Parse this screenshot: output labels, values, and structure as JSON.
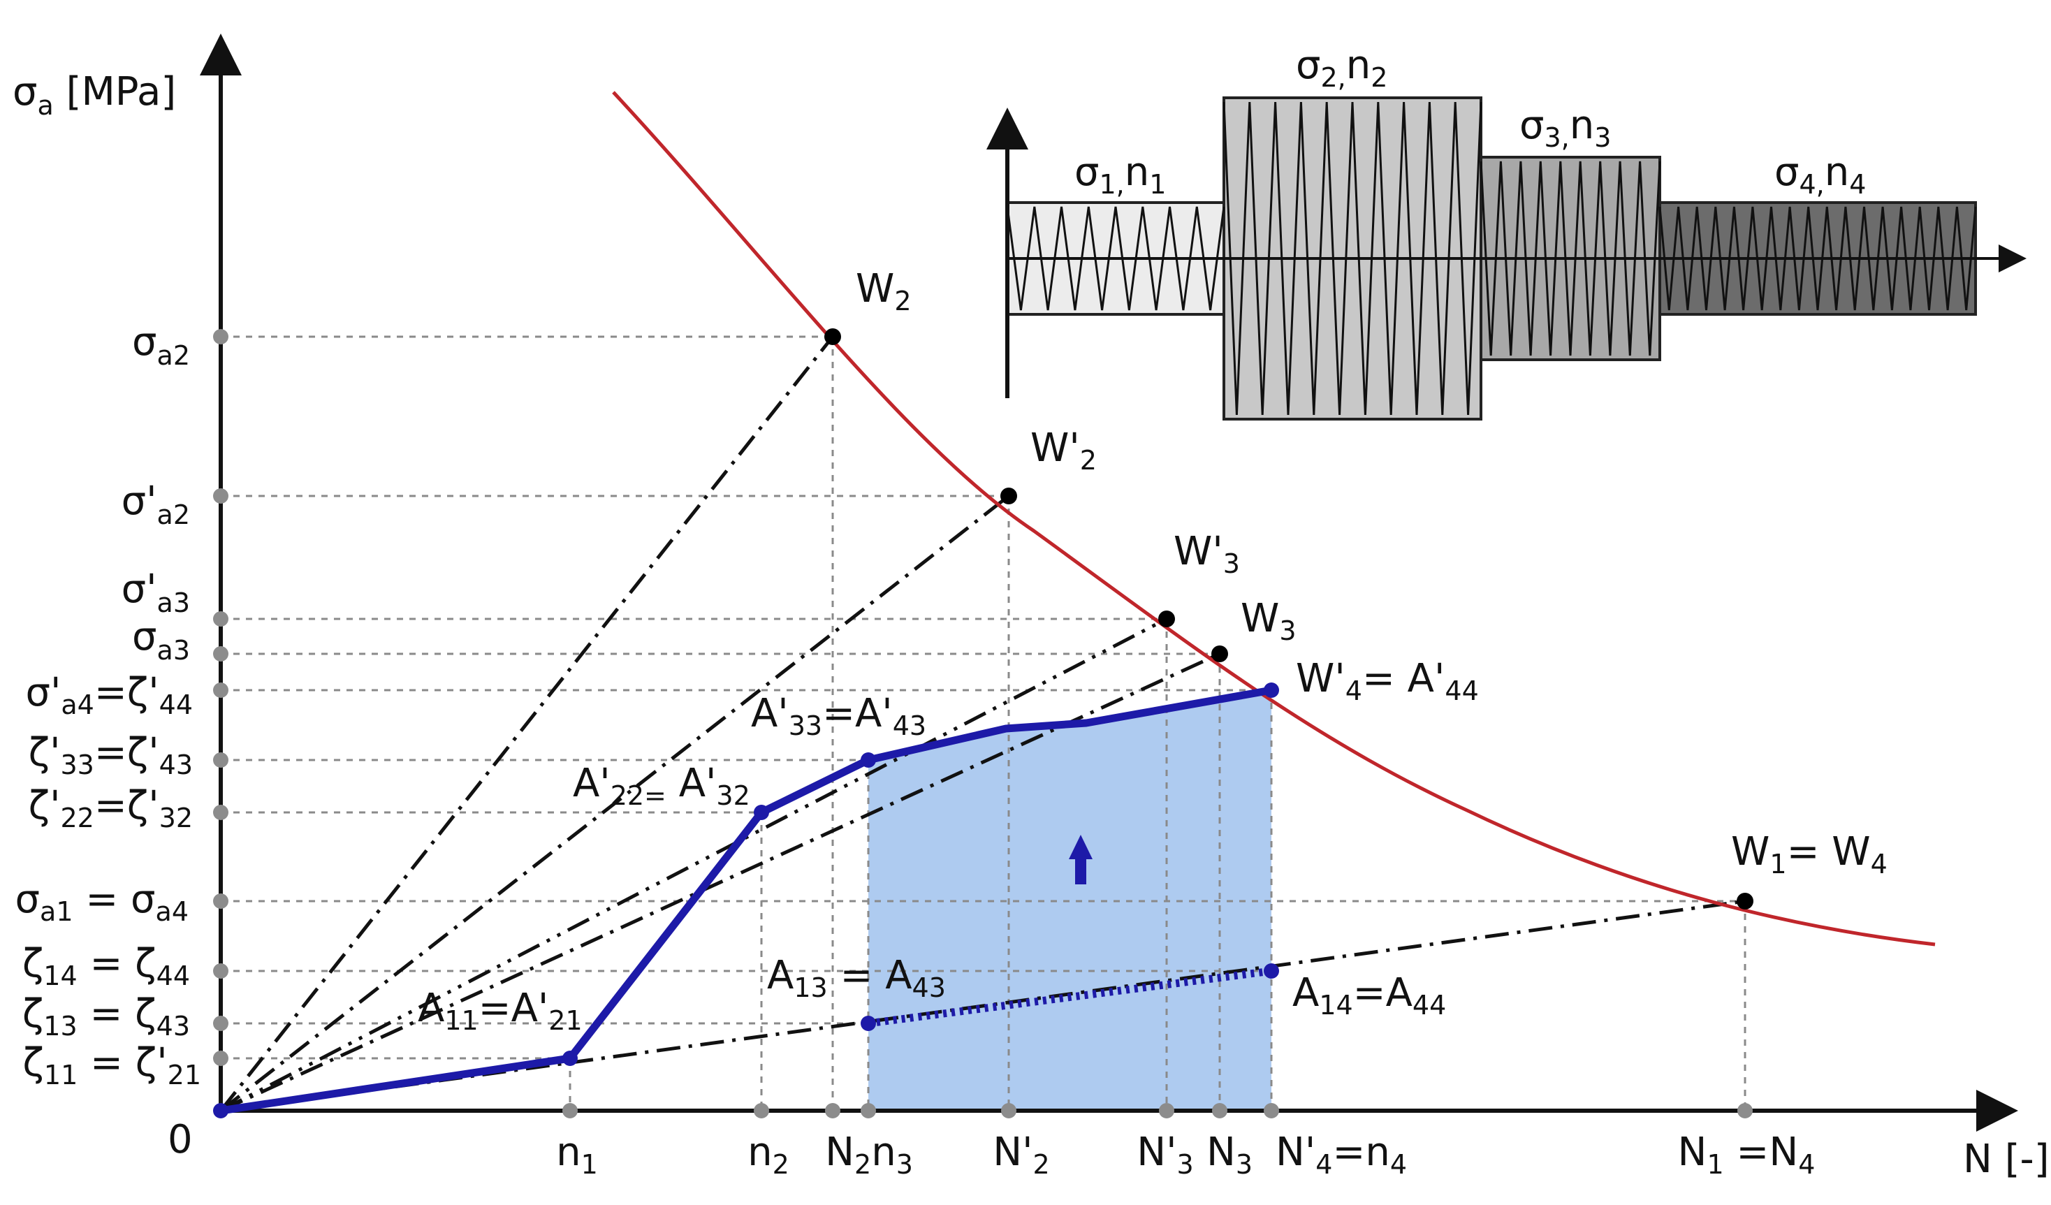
{
  "axes": {
    "y_label": "σ",
    "y_label_sub": "a",
    "y_label_unit": " [MPa]",
    "x_label": "N [-]",
    "origin": "0"
  },
  "y_ticks": [
    {
      "main": "σ",
      "sub": "a2",
      "rest": ""
    },
    {
      "main": "σ'",
      "sub": "a2",
      "rest": ""
    },
    {
      "main": "σ'",
      "sub": "a3",
      "rest": ""
    },
    {
      "main": "σ",
      "sub": "a3",
      "rest": ""
    },
    {
      "main": "σ'",
      "sub": "a4",
      "rest": "=ζ'",
      "sub2": "44"
    },
    {
      "main": "ζ'",
      "sub": "33",
      "rest": "=ζ'",
      "sub2": "43"
    },
    {
      "main": "ζ'",
      "sub": "22",
      "rest": "=ζ'",
      "sub2": "32"
    },
    {
      "main": "σ",
      "sub": "a1",
      "rest": " = σ",
      "sub2": "a4"
    },
    {
      "main": "ζ",
      "sub": "14",
      "rest": " = ζ",
      "sub2": "44"
    },
    {
      "main": "ζ",
      "sub": "13",
      "rest": " = ζ",
      "sub2": "43"
    },
    {
      "main": "ζ",
      "sub": "11",
      "rest": " = ζ'",
      "sub2": "21"
    }
  ],
  "x_ticks": [
    {
      "main": "n",
      "sub": "1",
      "rest": "",
      "sub2": ""
    },
    {
      "main": "n",
      "sub": "2",
      "rest": "",
      "sub2": ""
    },
    {
      "main": "N",
      "sub": "2",
      "rest": "n",
      "sub2": "3"
    },
    {
      "main": "N'",
      "sub": "2",
      "rest": "",
      "sub2": ""
    },
    {
      "main": "N'",
      "sub": "3",
      "rest": "",
      "sub2": ""
    },
    {
      "main": "N",
      "sub": "3",
      "rest": "",
      "sub2": ""
    },
    {
      "main": "N'",
      "sub": "4",
      "rest": "=n",
      "sub2": "4"
    },
    {
      "main": "N",
      "sub": "1",
      "rest": " =N",
      "sub2": "4"
    }
  ],
  "points": {
    "W2": {
      "main": "W",
      "sub": "2",
      "rest": "",
      "sub2": ""
    },
    "W2p": {
      "main": "W'",
      "sub": "2",
      "rest": "",
      "sub2": ""
    },
    "W3p": {
      "main": "W'",
      "sub": "3",
      "rest": "",
      "sub2": ""
    },
    "W3": {
      "main": "W",
      "sub": "3",
      "rest": "",
      "sub2": ""
    },
    "W4p": {
      "main": "W'",
      "sub": "4",
      "rest": "= A'",
      "sub2": "44"
    },
    "A33": {
      "main": "A'",
      "sub": "33",
      "rest": "=A'",
      "sub2": "43"
    },
    "A22": {
      "main": "A'",
      "sub": "22=",
      "rest": " A'",
      "sub2": "32"
    },
    "A11": {
      "main": "A",
      "sub": "11",
      "rest": "=A'",
      "sub2": "21"
    },
    "A13": {
      "main": "A",
      "sub": "13",
      "rest": " = A",
      "sub2": "43"
    },
    "A14": {
      "main": "A",
      "sub": "14",
      "rest": "=A",
      "sub2": "44"
    },
    "W1": {
      "main": "W",
      "sub": "1",
      "rest": "= W",
      "sub2": "4"
    }
  },
  "blocks": [
    {
      "main": "σ",
      "sub": "1,",
      "rest": "n",
      "sub2": "1",
      "fill": "#ececec"
    },
    {
      "main": "σ",
      "sub": "2,",
      "rest": "n",
      "sub2": "2",
      "fill": "#c8c8c8"
    },
    {
      "main": "σ",
      "sub": "3,",
      "rest": "n",
      "sub2": "3",
      "fill": "#a8a8a8"
    },
    {
      "main": "σ",
      "sub": "4,",
      "rest": "n",
      "sub2": "4",
      "fill": "#6c6c6c"
    }
  ],
  "colors": {
    "curve": "#c0262b",
    "damage_path": "#1d1aa8",
    "shaded_area": "#aecbf0",
    "grid": "#8a8a8a"
  }
}
